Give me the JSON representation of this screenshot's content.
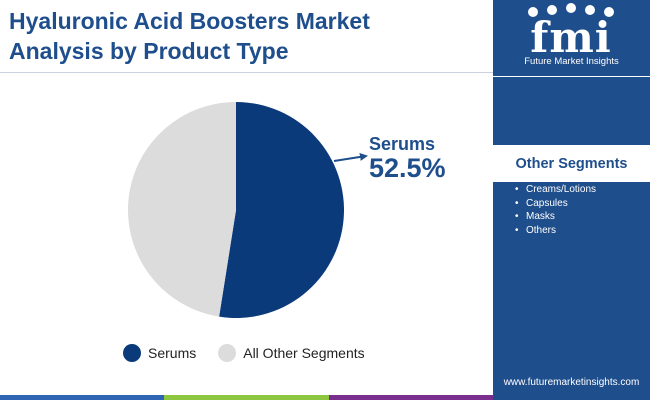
{
  "header": {
    "title_line1": "Hyaluronic Acid Boosters Market",
    "title_line2": "Analysis by Product Type"
  },
  "chart_data": {
    "type": "pie",
    "categories": [
      "Serums",
      "All Other Segments"
    ],
    "values": [
      52.5,
      47.5
    ],
    "colors": [
      "#0a3a7a",
      "#dcdcdc"
    ],
    "callout": {
      "label": "Serums",
      "value": "52.5%"
    }
  },
  "legend": {
    "items": [
      {
        "label": "Serums",
        "color": "#0a3a7a"
      },
      {
        "label": "All Other Segments",
        "color": "#dcdcdc"
      }
    ]
  },
  "side_panel": {
    "logo_text": "fmi",
    "logo_caption": "Future Market Insights",
    "segments_title": "Other Segments",
    "segments": [
      "Creams/Lotions",
      "Capsules",
      "Masks",
      "Others"
    ],
    "website": "www.futuremarketinsights.com"
  },
  "colors": {
    "brand_blue": "#1f4e8c",
    "bottom_bar": [
      "#2f66b3",
      "#8dc63f",
      "#7a2f8e"
    ]
  }
}
